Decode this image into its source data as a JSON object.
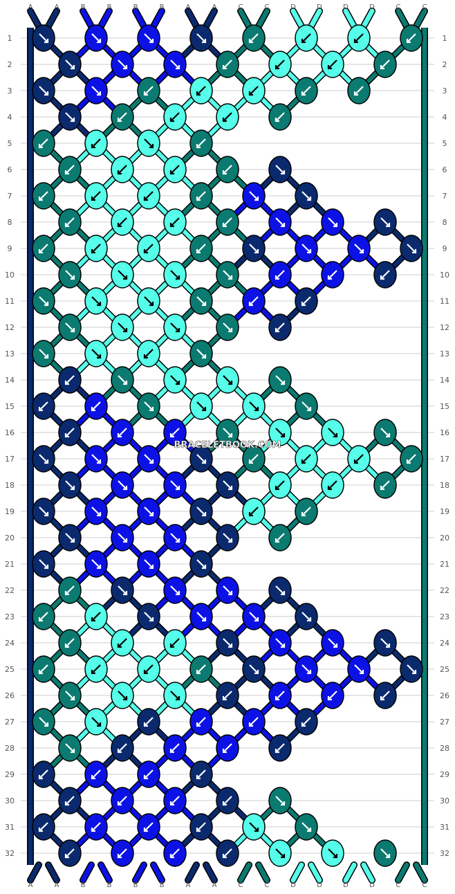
{
  "watermark": "BRACELETBOOK.COM",
  "colors": {
    "A": "#0b2a6e",
    "B": "#0c12e6",
    "C": "#0b7a70",
    "D": "#55ffe9",
    "outline": "#000000",
    "grid": "#cccccc",
    "label": "#555555"
  },
  "string_labels_top": [
    "A",
    "A",
    "B",
    "B",
    "B",
    "B",
    "A",
    "A",
    "C",
    "C",
    "D",
    "D",
    "D",
    "D",
    "C",
    "C"
  ],
  "string_labels_bottom": [
    "A",
    "A",
    "B",
    "B",
    "B",
    "B",
    "A",
    "A",
    "C",
    "C",
    "D",
    "D",
    "D",
    "D",
    "C",
    "C"
  ],
  "row_numbers": [
    "1",
    "2",
    "3",
    "4",
    "5",
    "6",
    "7",
    "8",
    "9",
    "10",
    "11",
    "12",
    "13",
    "14",
    "15",
    "16",
    "17",
    "18",
    "19",
    "20",
    "21",
    "22",
    "23",
    "24",
    "25",
    "26",
    "27",
    "28",
    "29",
    "30",
    "31",
    "32"
  ],
  "knot_rows": [
    [
      "A:se",
      "B:se",
      "B:se",
      "A:se",
      "C:sw",
      "D:sw",
      "D:sw",
      "C:sw"
    ],
    [
      "A:se",
      "B:se",
      "B:se",
      "C:sw",
      "D:sw",
      "D:sw",
      "C:sw"
    ],
    [
      "A:se",
      "B:se",
      "C:sw",
      "D:sw",
      "D:sw",
      "C:sw",
      "C:sw"
    ],
    [
      "A:se",
      "C:sw",
      "D:sw",
      "D:sw",
      "C:sw"
    ],
    [
      "C:sw",
      "D:sw",
      "D:se",
      "C:sw"
    ],
    [
      "C:sw",
      "D:sw",
      "D:sw",
      "C:sw",
      "A:se"
    ],
    [
      "C:sw",
      "D:sw",
      "D:sw",
      "C:sw",
      "B:se",
      "A:se"
    ],
    [
      "C:sw",
      "D:sw",
      "D:sw",
      "C:sw",
      "B:se",
      "B:se",
      "A:se"
    ],
    [
      "C:sw",
      "D:sw",
      "D:sw",
      "C:sw",
      "A:se",
      "B:se",
      "B:se",
      "A:se"
    ],
    [
      "C:se",
      "D:se",
      "D:se",
      "C:se",
      "B:sw",
      "B:sw",
      "A:sw"
    ],
    [
      "C:se",
      "D:se",
      "D:se",
      "C:se",
      "B:sw",
      "A:sw"
    ],
    [
      "C:se",
      "D:se",
      "D:se",
      "C:se",
      "A:sw"
    ],
    [
      "C:se",
      "D:se",
      "D:sw",
      "C:se"
    ],
    [
      "A:sw",
      "C:se",
      "D:se",
      "D:se",
      "C:se"
    ],
    [
      "A:sw",
      "B:sw",
      "C:se",
      "D:se",
      "D:se",
      "C:se"
    ],
    [
      "A:sw",
      "B:sw",
      "B:sw",
      "C:se",
      "D:se",
      "D:se",
      "C:se"
    ],
    [
      "A:se",
      "B:se",
      "B:se",
      "A:se",
      "C:sw",
      "D:sw",
      "D:sw",
      "C:sw"
    ],
    [
      "A:se",
      "B:se",
      "B:se",
      "A:se",
      "D:sw",
      "D:sw",
      "C:sw"
    ],
    [
      "A:se",
      "B:se",
      "B:se",
      "A:se",
      "D:sw",
      "C:sw"
    ],
    [
      "A:se",
      "B:se",
      "B:se",
      "A:se",
      "C:sw"
    ],
    [
      "A:se",
      "B:se",
      "B:se",
      "A:se"
    ],
    [
      "C:sw",
      "A:se",
      "B:se",
      "B:se",
      "A:se"
    ],
    [
      "C:sw",
      "D:sw",
      "A:se",
      "B:se",
      "B:se",
      "A:se"
    ],
    [
      "C:sw",
      "D:sw",
      "D:sw",
      "A:se",
      "B:se",
      "B:se",
      "A:se"
    ],
    [
      "C:sw",
      "D:sw",
      "D:sw",
      "C:sw",
      "A:se",
      "B:se",
      "B:se",
      "A:se"
    ],
    [
      "C:se",
      "D:se",
      "D:se",
      "A:sw",
      "B:sw",
      "B:sw",
      "A:sw"
    ],
    [
      "C:se",
      "D:se",
      "A:sw",
      "B:sw",
      "B:sw",
      "A:sw"
    ],
    [
      "C:se",
      "A:sw",
      "B:sw",
      "B:sw",
      "A:sw"
    ],
    [
      "A:sw",
      "B:sw",
      "B:sw",
      "A:sw"
    ],
    [
      "A:sw",
      "B:sw",
      "B:sw",
      "A:sw",
      "C:se"
    ],
    [
      "A:sw",
      "B:sw",
      "B:sw",
      "A:sw",
      "D:se",
      "C:se"
    ],
    [
      "A:sw",
      "B:sw",
      "B:sw",
      "A:sw",
      "D:se",
      "D:se",
      "C:se"
    ]
  ]
}
